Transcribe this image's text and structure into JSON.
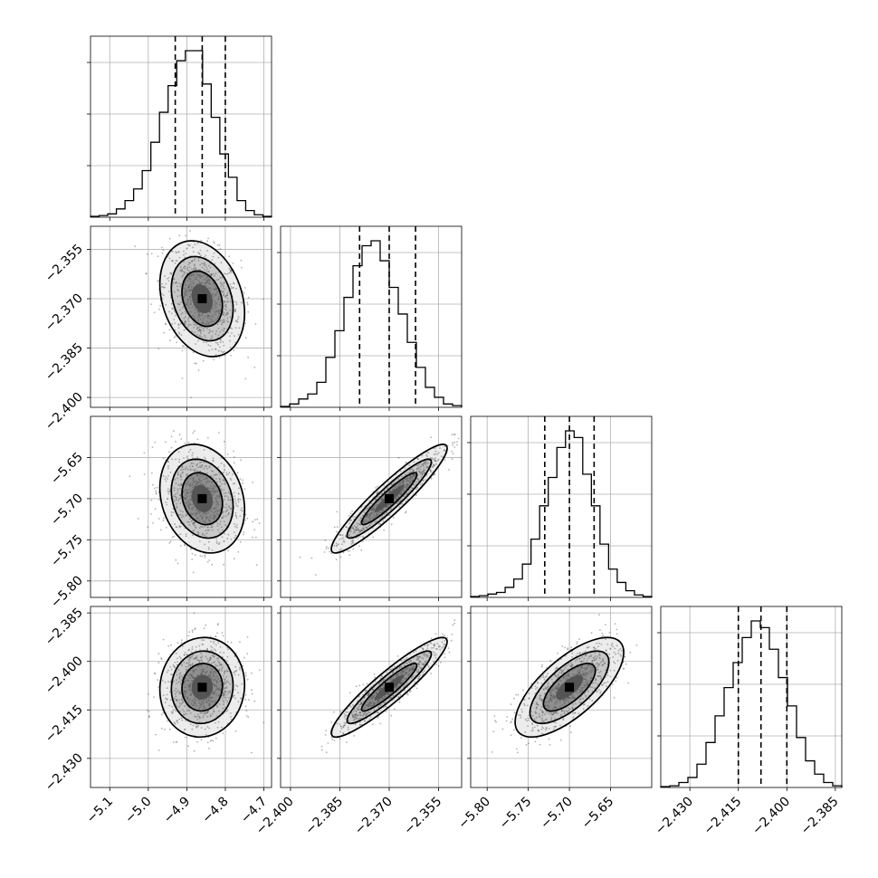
{
  "chart_data": {
    "type": "corner",
    "grid": true,
    "params": [
      {
        "range": [
          -5.15,
          -4.68
        ],
        "mean": -4.86,
        "sigma": 0.05,
        "quantiles": [
          -4.93,
          -4.86,
          -4.8
        ],
        "ticks": [
          "−5.1",
          "−5.0",
          "−4.9",
          "−4.8",
          "−4.7"
        ],
        "tick_values": [
          -5.1,
          -5.0,
          -4.9,
          -4.8,
          -4.7
        ],
        "hist": [
          0.005,
          0.01,
          0.02,
          0.05,
          0.1,
          0.17,
          0.28,
          0.45,
          0.63,
          0.79,
          0.94,
          1.0,
          1.0,
          0.8,
          0.6,
          0.38,
          0.24,
          0.1,
          0.04,
          0.015,
          0.005
        ]
      },
      {
        "range": [
          -2.403,
          -2.348
        ],
        "mean": -2.37,
        "sigma": 0.008,
        "quantiles": [
          -2.379,
          -2.37,
          -2.362
        ],
        "ticks": [
          "−2.400",
          "−2.385",
          "−2.370",
          "−2.355"
        ],
        "tick_values": [
          -2.4,
          -2.385,
          -2.37,
          -2.355
        ],
        "hist": [
          0.005,
          0.02,
          0.05,
          0.08,
          0.15,
          0.3,
          0.46,
          0.66,
          0.85,
          0.97,
          1.0,
          0.88,
          0.72,
          0.56,
          0.39,
          0.24,
          0.12,
          0.06,
          0.02,
          0.01
        ]
      },
      {
        "range": [
          -5.82,
          -5.6
        ],
        "mean": -5.7,
        "sigma": 0.03,
        "quantiles": [
          -5.73,
          -5.7,
          -5.67
        ],
        "ticks": [
          "−5.80",
          "−5.75",
          "−5.70",
          "−5.65"
        ],
        "tick_values": [
          -5.8,
          -5.75,
          -5.7,
          -5.65
        ],
        "hist": [
          0.005,
          0.01,
          0.02,
          0.03,
          0.06,
          0.11,
          0.2,
          0.35,
          0.55,
          0.72,
          0.9,
          1.0,
          0.96,
          0.74,
          0.55,
          0.32,
          0.17,
          0.09,
          0.04,
          0.015,
          0.005
        ]
      },
      {
        "range": [
          -2.439,
          -2.383
        ],
        "mean": -2.408,
        "sigma": 0.007,
        "quantiles": [
          -2.415,
          -2.408,
          -2.4
        ],
        "ticks": [
          "−2.430",
          "−2.415",
          "−2.400",
          "−2.385"
        ],
        "tick_values": [
          -2.43,
          -2.415,
          -2.4,
          -2.385
        ],
        "hist": [
          0.005,
          0.01,
          0.03,
          0.06,
          0.14,
          0.27,
          0.43,
          0.6,
          0.75,
          0.9,
          1.0,
          0.96,
          0.83,
          0.66,
          0.49,
          0.3,
          0.16,
          0.08,
          0.03,
          0.01
        ]
      }
    ],
    "correlations": [
      [
        1,
        -0.25,
        -0.2,
        0.05
      ],
      [
        -0.25,
        1,
        0.93,
        0.92
      ],
      [
        -0.2,
        0.93,
        1,
        0.7
      ],
      [
        0.05,
        0.92,
        0.7,
        1
      ]
    ]
  }
}
